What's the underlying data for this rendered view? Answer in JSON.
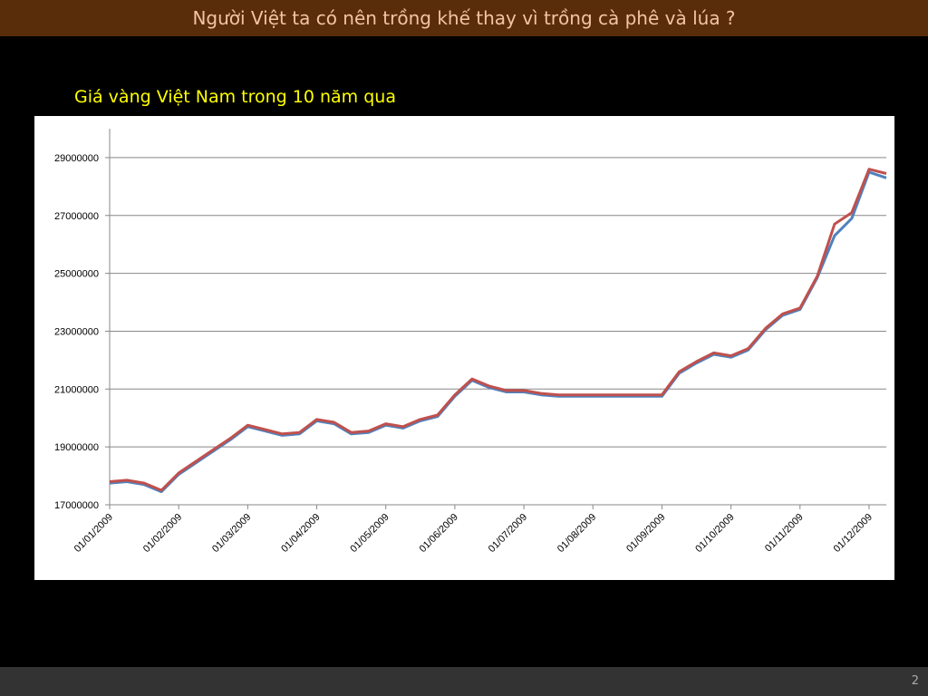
{
  "header": {
    "title": "Người Việt ta có nên trồng khế thay vì trồng cà phê và lúa ?"
  },
  "subtitle": "Giá vàng Việt Nam trong 10 năm qua",
  "footer": {
    "page": "2"
  },
  "chart_data": {
    "type": "line",
    "categories": [
      "01/01/2009",
      null,
      null,
      null,
      "01/02/2009",
      null,
      null,
      null,
      "01/03/2009",
      null,
      null,
      null,
      "01/04/2009",
      null,
      null,
      null,
      "01/05/2009",
      null,
      null,
      null,
      "01/06/2009",
      null,
      null,
      null,
      "01/07/2009",
      null,
      null,
      null,
      "01/08/2009",
      null,
      null,
      null,
      "01/09/2009",
      null,
      null,
      null,
      "01/10/2009",
      null,
      null,
      null,
      "01/11/2009",
      null,
      null,
      null,
      "01/12/2009",
      null
    ],
    "series": [
      {
        "color": "#4f81bd",
        "values": [
          17750000,
          17800000,
          17700000,
          17450000,
          18050000,
          18450000,
          18850000,
          19250000,
          19700000,
          19550000,
          19400000,
          19450000,
          19900000,
          19800000,
          19450000,
          19500000,
          19750000,
          19650000,
          19900000,
          20050000,
          20750000,
          21300000,
          21050000,
          20900000,
          20900000,
          20800000,
          20750000,
          20750000,
          20750000,
          20750000,
          20750000,
          20750000,
          20750000,
          21550000,
          21900000,
          22200000,
          22100000,
          22350000,
          23050000,
          23550000,
          23750000,
          24850000,
          26300000,
          26900000,
          28500000,
          28300000
        ]
      },
      {
        "color": "#c0504d",
        "values": [
          17800000,
          17850000,
          17750000,
          17500000,
          18100000,
          18500000,
          18900000,
          19300000,
          19750000,
          19600000,
          19450000,
          19500000,
          19950000,
          19850000,
          19500000,
          19550000,
          19800000,
          19700000,
          19950000,
          20100000,
          20800000,
          21350000,
          21100000,
          20950000,
          20950000,
          20850000,
          20800000,
          20800000,
          20800000,
          20800000,
          20800000,
          20800000,
          20800000,
          21600000,
          21950000,
          22250000,
          22150000,
          22400000,
          23100000,
          23600000,
          23800000,
          24900000,
          26700000,
          27100000,
          28600000,
          28450000
        ]
      }
    ],
    "ylim": [
      17000000,
      30000000
    ],
    "yticks": [
      17000000,
      19000000,
      21000000,
      23000000,
      25000000,
      27000000,
      29000000
    ],
    "grid": true
  }
}
